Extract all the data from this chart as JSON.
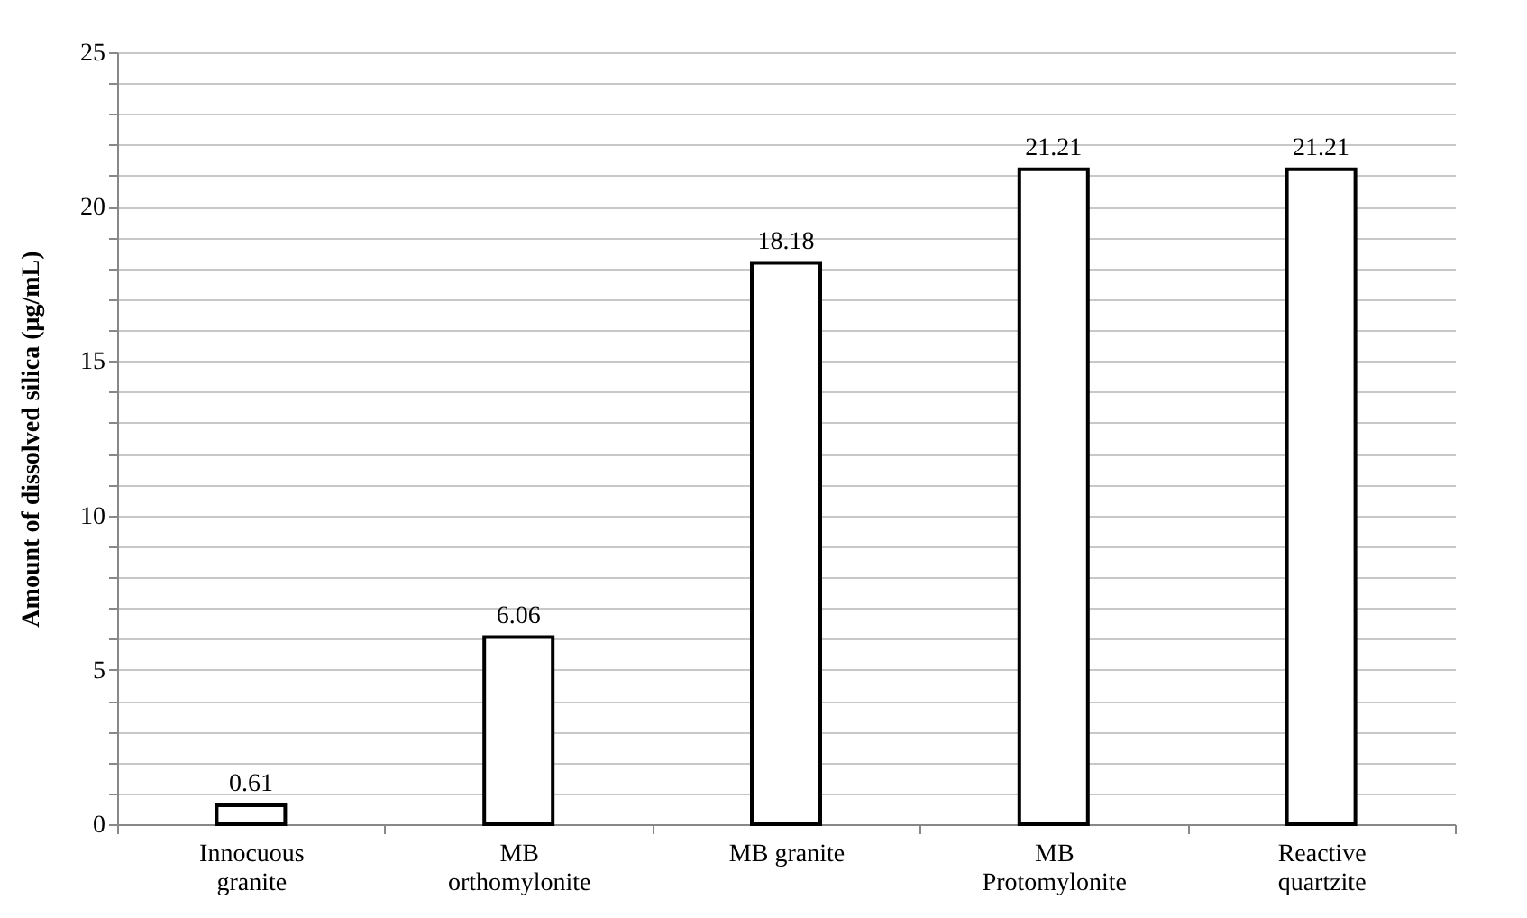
{
  "chart_data": {
    "type": "bar",
    "ylabel": "Amount of dissolved  silica (μg/mL)",
    "categories": [
      "Innocuous granite",
      "MB orthomylonite",
      "MB granite",
      "MB Protomylonite",
      "Reactive quartzite"
    ],
    "values": [
      0.61,
      6.06,
      18.18,
      21.21,
      21.21
    ],
    "color": "#ffffff",
    "data_labels": true,
    "grid": "y",
    "ylim": [
      0,
      25
    ],
    "yticks": [
      0,
      {
        "value": 1,
        "label": null
      },
      {
        "value": 2,
        "label": null
      },
      {
        "value": 3,
        "label": null
      },
      {
        "value": 4,
        "label": null
      },
      5,
      {
        "value": 6,
        "label": null
      },
      {
        "value": 7,
        "label": null
      },
      {
        "value": 8,
        "label": null
      },
      {
        "value": 9,
        "label": null
      },
      10,
      {
        "value": 11,
        "label": null
      },
      {
        "value": 12,
        "label": null
      },
      {
        "value": 13,
        "label": null
      },
      {
        "value": 14,
        "label": null
      },
      15,
      {
        "value": 16,
        "label": null
      },
      {
        "value": 17,
        "label": null
      },
      {
        "value": 18,
        "label": null
      },
      {
        "value": 19,
        "label": null
      },
      20,
      {
        "value": 21,
        "label": null
      },
      {
        "value": 22,
        "label": null
      },
      {
        "value": 23,
        "label": null
      },
      {
        "value": 24,
        "label": null
      },
      25
    ]
  }
}
